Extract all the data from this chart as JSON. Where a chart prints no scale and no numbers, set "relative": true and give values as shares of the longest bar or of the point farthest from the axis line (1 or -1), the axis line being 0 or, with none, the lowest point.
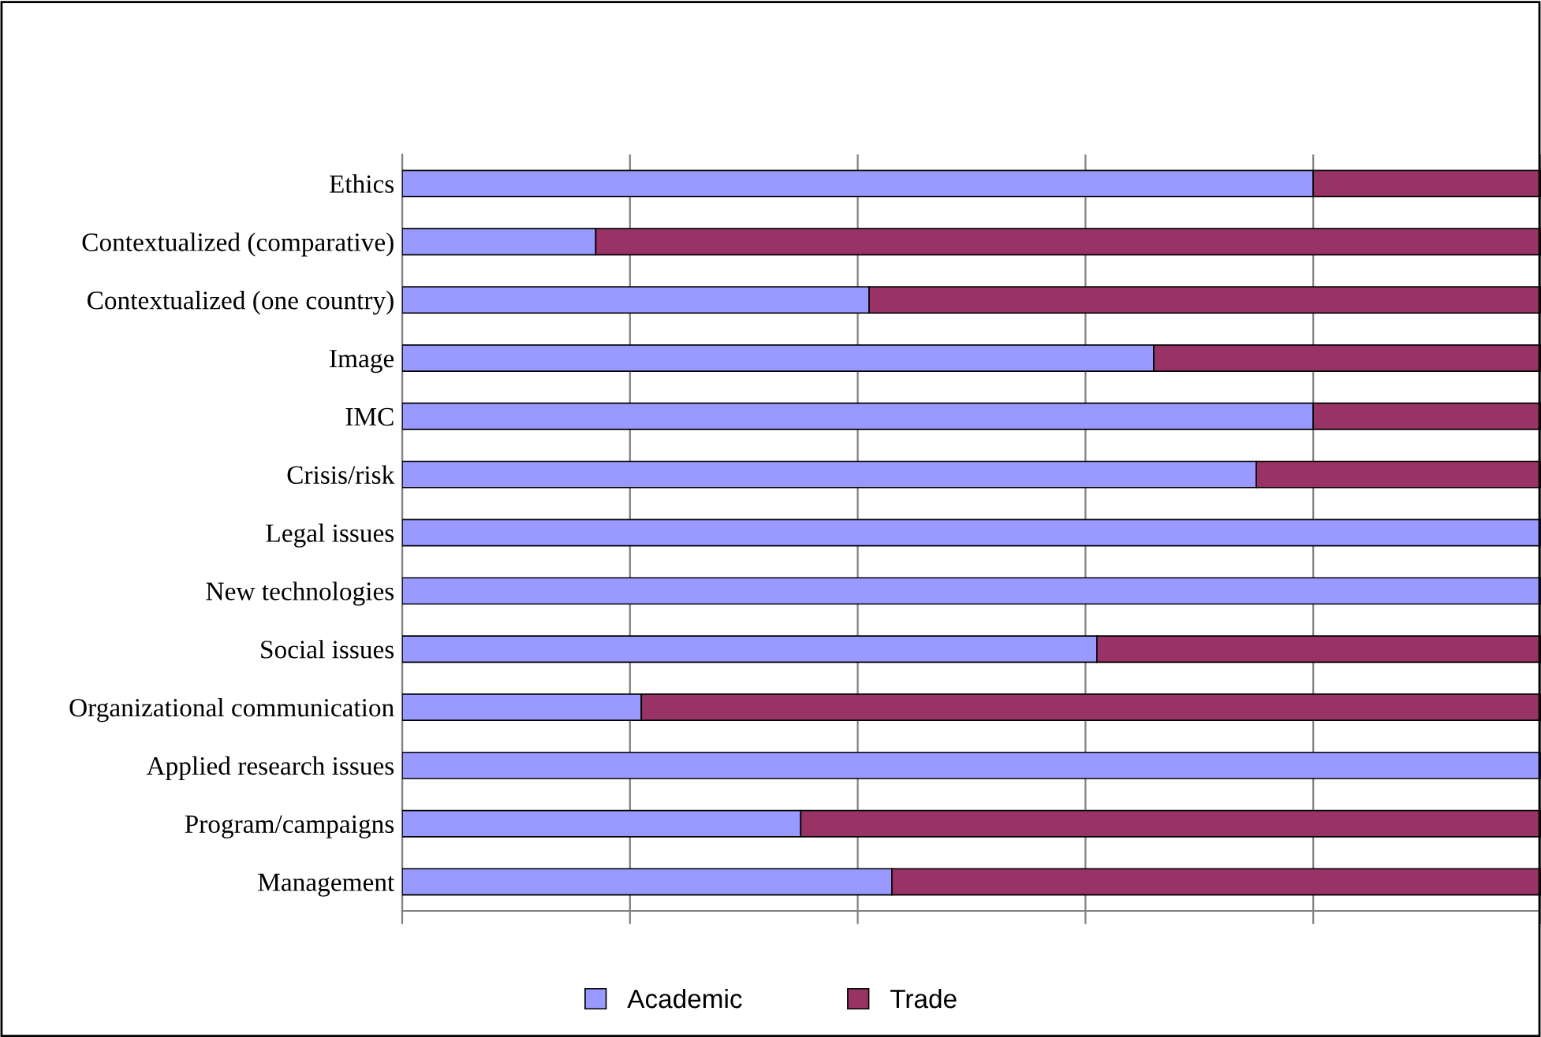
{
  "chart_data": {
    "type": "bar",
    "orientation": "horizontal",
    "stacked": true,
    "relative": true,
    "grid": "x",
    "legend": "bottom",
    "categories": [
      "Ethics",
      "Contextualized (comparative)",
      "Contextualized (one country)",
      "Image",
      "IMC",
      "Crisis/risk",
      "Legal issues",
      "New technologies",
      "Social issues",
      "Organizational communication",
      "Applied research issues",
      "Program/campaigns",
      "Management"
    ],
    "series": [
      {
        "name": "Academic",
        "color": "#9999ff",
        "values": [
          0.8,
          0.17,
          0.41,
          0.66,
          0.8,
          0.75,
          1,
          1,
          0.61,
          0.21,
          1,
          0.35,
          0.43
        ]
      },
      {
        "name": "Trade",
        "color": "#993366",
        "values": [
          0.2,
          0.83,
          0.59,
          0.34,
          0.2,
          0.25,
          0,
          0,
          0.39,
          0.79,
          0,
          0.65,
          0.57
        ]
      }
    ]
  }
}
